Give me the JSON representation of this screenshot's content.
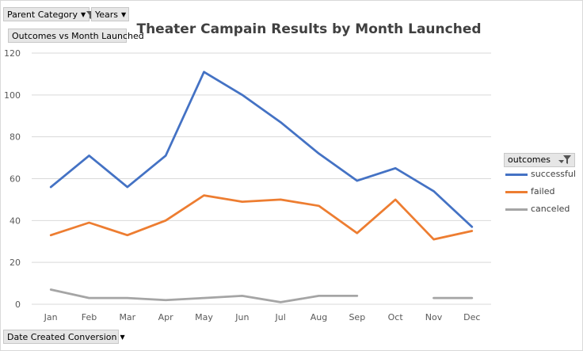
{
  "toolbar": {
    "parent_category_label": "Parent Category",
    "years_label": "Years",
    "outcomes_label": "Outcomes vs Month Launched",
    "date_created_label": "Date Created Conversion"
  },
  "legend": {
    "header": "outcomes"
  },
  "chart_data": {
    "type": "line",
    "title": "Theater Campain Results by Month Launched",
    "xlabel": "",
    "ylabel": "",
    "categories": [
      "Jan",
      "Feb",
      "Mar",
      "Apr",
      "May",
      "Jun",
      "Jul",
      "Aug",
      "Sep",
      "Oct",
      "Nov",
      "Dec"
    ],
    "ylim": [
      0,
      120
    ],
    "yticks": [
      0,
      20,
      40,
      60,
      80,
      100,
      120
    ],
    "grid": true,
    "legend_position": "right",
    "series": [
      {
        "name": "successful",
        "color": "#4472c4",
        "values": [
          56,
          71,
          56,
          71,
          111,
          100,
          87,
          72,
          59,
          65,
          54,
          37
        ]
      },
      {
        "name": "failed",
        "color": "#ed7d31",
        "values": [
          33,
          39,
          33,
          40,
          52,
          49,
          50,
          47,
          34,
          50,
          31,
          35
        ]
      },
      {
        "name": "canceled",
        "color": "#a5a5a5",
        "values": [
          7,
          3,
          3,
          2,
          3,
          4,
          1,
          4,
          4,
          null,
          3,
          3
        ]
      }
    ]
  }
}
